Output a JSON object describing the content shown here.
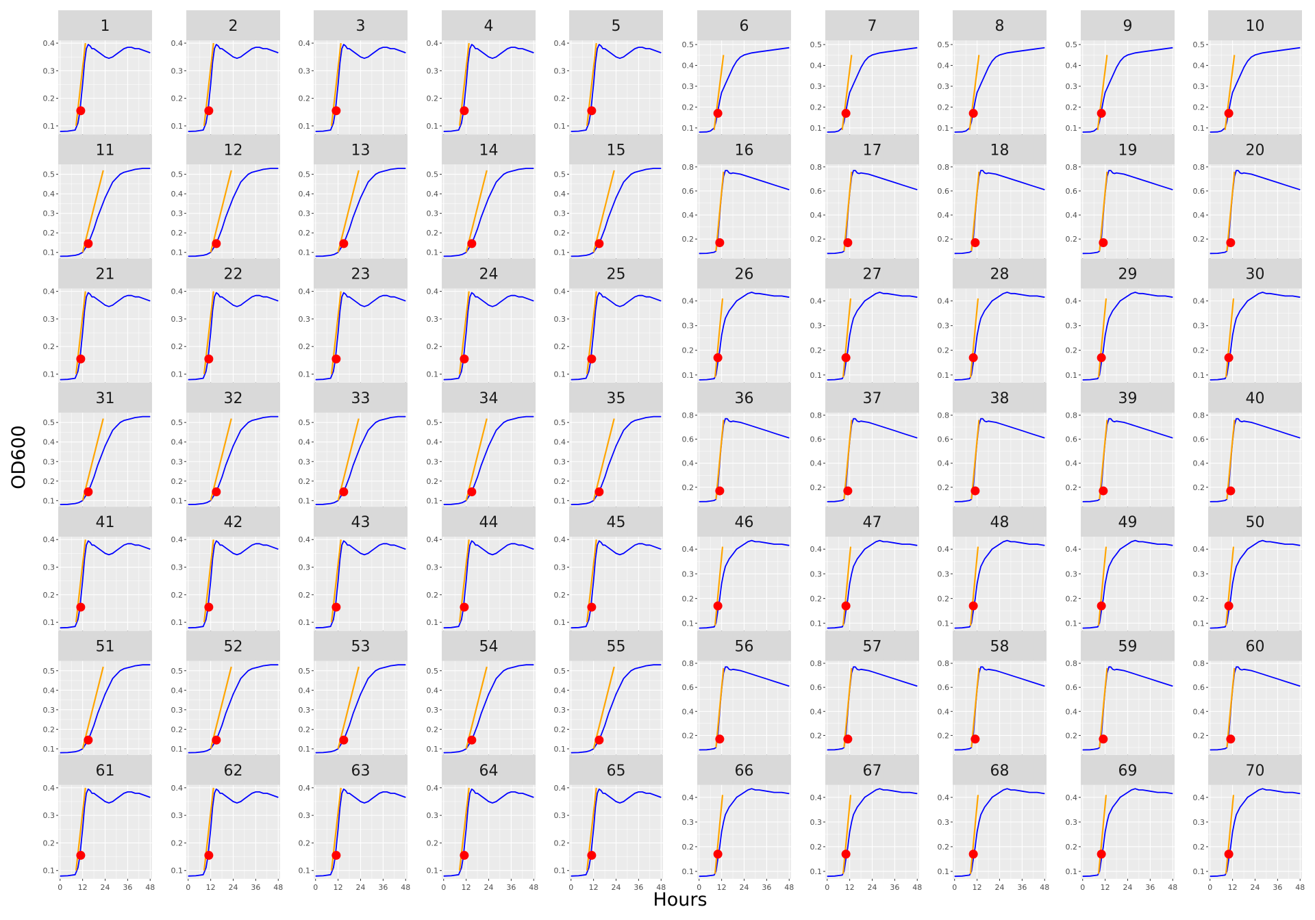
{
  "chart_data": {
    "type": "line",
    "layout": "facet-grid",
    "facet_columns": 10,
    "facet_rows": 7,
    "xlabel": "Hours",
    "ylabel": "OD600",
    "x_ticks": [
      "0",
      "12",
      "24",
      "36",
      "48"
    ],
    "xlim": [
      -1,
      49
    ],
    "series": [
      {
        "name": "",
        "role": "growth-curve",
        "color": "#0000ff"
      },
      {
        "name": "",
        "role": "exponential-fit",
        "color": "#ffa500"
      },
      {
        "name": "",
        "role": "fit-point",
        "color": "#ff0000"
      }
    ],
    "colors": {
      "panel_bg": "#ebebeb",
      "grid": "#ffffff",
      "strip_bg": "#d9d9d9",
      "text": "#1a1a1a",
      "tick": "#4d4d4d"
    },
    "block_templates": {
      "A": {
        "ylim": [
          0.07,
          0.41
        ],
        "yticks": [
          "0.1",
          "0.2",
          "0.3",
          "0.4"
        ],
        "curve": [
          [
            0,
            0.08
          ],
          [
            4,
            0.081
          ],
          [
            8,
            0.085
          ],
          [
            9.5,
            0.11
          ],
          [
            10.5,
            0.15
          ],
          [
            12,
            0.25
          ],
          [
            13,
            0.33
          ],
          [
            14,
            0.38
          ],
          [
            15,
            0.395
          ],
          [
            16,
            0.39
          ],
          [
            17,
            0.38
          ],
          [
            18,
            0.38
          ],
          [
            19,
            0.375
          ],
          [
            20,
            0.37
          ],
          [
            22,
            0.36
          ],
          [
            24,
            0.35
          ],
          [
            26,
            0.345
          ],
          [
            28,
            0.35
          ],
          [
            30,
            0.36
          ],
          [
            32,
            0.37
          ],
          [
            34,
            0.38
          ],
          [
            36,
            0.385
          ],
          [
            38,
            0.385
          ],
          [
            40,
            0.38
          ],
          [
            42,
            0.38
          ],
          [
            44,
            0.375
          ],
          [
            46,
            0.37
          ],
          [
            48,
            0.365
          ]
        ],
        "fit": [
          [
            8.5,
            0.1
          ],
          [
            13.5,
            0.4
          ]
        ],
        "point": [
          11,
          0.155
        ]
      },
      "B": {
        "ylim": [
          0.07,
          0.52
        ],
        "yticks": [
          "0.1",
          "0.2",
          "0.3",
          "0.4",
          "0.5"
        ],
        "curve": [
          [
            0,
            0.08
          ],
          [
            4,
            0.081
          ],
          [
            6,
            0.085
          ],
          [
            8,
            0.1
          ],
          [
            9,
            0.13
          ],
          [
            10,
            0.18
          ],
          [
            11,
            0.23
          ],
          [
            12,
            0.27
          ],
          [
            13,
            0.29
          ],
          [
            14,
            0.31
          ],
          [
            16,
            0.35
          ],
          [
            18,
            0.39
          ],
          [
            20,
            0.42
          ],
          [
            22,
            0.44
          ],
          [
            24,
            0.45
          ],
          [
            28,
            0.46
          ],
          [
            32,
            0.465
          ],
          [
            36,
            0.47
          ],
          [
            40,
            0.475
          ],
          [
            44,
            0.48
          ],
          [
            48,
            0.485
          ]
        ],
        "fit": [
          [
            8,
            0.09
          ],
          [
            13,
            0.45
          ]
        ],
        "point": [
          10,
          0.17
        ]
      },
      "C": {
        "ylim": [
          0.07,
          0.55
        ],
        "yticks": [
          "0.1",
          "0.2",
          "0.3",
          "0.4",
          "0.5"
        ],
        "curve": [
          [
            0,
            0.08
          ],
          [
            4,
            0.081
          ],
          [
            8,
            0.085
          ],
          [
            10,
            0.09
          ],
          [
            12,
            0.1
          ],
          [
            14,
            0.13
          ],
          [
            16,
            0.17
          ],
          [
            18,
            0.22
          ],
          [
            20,
            0.28
          ],
          [
            22,
            0.33
          ],
          [
            24,
            0.38
          ],
          [
            26,
            0.42
          ],
          [
            28,
            0.46
          ],
          [
            30,
            0.48
          ],
          [
            32,
            0.5
          ],
          [
            34,
            0.51
          ],
          [
            36,
            0.515
          ],
          [
            38,
            0.52
          ],
          [
            40,
            0.525
          ],
          [
            44,
            0.53
          ],
          [
            48,
            0.53
          ]
        ],
        "fit": [
          [
            12,
            0.1
          ],
          [
            23,
            0.52
          ]
        ],
        "point": [
          15,
          0.145
        ]
      },
      "D": {
        "ylim": [
          0.04,
          0.82
        ],
        "yticks": [
          "0.2",
          "0.4",
          "0.6",
          "0.8"
        ],
        "curve": [
          [
            0,
            0.08
          ],
          [
            4,
            0.081
          ],
          [
            6,
            0.085
          ],
          [
            8,
            0.09
          ],
          [
            9,
            0.1
          ],
          [
            10,
            0.2
          ],
          [
            11,
            0.4
          ],
          [
            12,
            0.58
          ],
          [
            13,
            0.72
          ],
          [
            14,
            0.77
          ],
          [
            15,
            0.77
          ],
          [
            16,
            0.75
          ],
          [
            17,
            0.745
          ],
          [
            18,
            0.75
          ],
          [
            20,
            0.745
          ],
          [
            22,
            0.74
          ],
          [
            24,
            0.73
          ],
          [
            28,
            0.71
          ],
          [
            32,
            0.69
          ],
          [
            36,
            0.67
          ],
          [
            40,
            0.65
          ],
          [
            44,
            0.63
          ],
          [
            48,
            0.61
          ]
        ],
        "fit": [
          [
            9,
            0.1
          ],
          [
            13,
            0.76
          ]
        ],
        "point": [
          11,
          0.17
        ]
      },
      "E": {
        "ylim": [
          0.07,
          0.45
        ],
        "yticks": [
          "0.1",
          "0.2",
          "0.3",
          "0.4"
        ],
        "curve": [
          [
            0,
            0.08
          ],
          [
            4,
            0.081
          ],
          [
            8,
            0.085
          ],
          [
            9,
            0.1
          ],
          [
            10,
            0.15
          ],
          [
            11,
            0.2
          ],
          [
            12,
            0.26
          ],
          [
            13,
            0.3
          ],
          [
            14,
            0.33
          ],
          [
            16,
            0.36
          ],
          [
            18,
            0.38
          ],
          [
            20,
            0.4
          ],
          [
            22,
            0.41
          ],
          [
            24,
            0.42
          ],
          [
            26,
            0.43
          ],
          [
            28,
            0.435
          ],
          [
            30,
            0.43
          ],
          [
            32,
            0.43
          ],
          [
            36,
            0.425
          ],
          [
            40,
            0.42
          ],
          [
            44,
            0.42
          ],
          [
            48,
            0.415
          ]
        ],
        "fit": [
          [
            8.5,
            0.09
          ],
          [
            12.5,
            0.41
          ]
        ],
        "point": [
          10,
          0.17
        ]
      }
    },
    "facets": [
      {
        "label": "1",
        "t": "A"
      },
      {
        "label": "2",
        "t": "A"
      },
      {
        "label": "3",
        "t": "A"
      },
      {
        "label": "4",
        "t": "A"
      },
      {
        "label": "5",
        "t": "A"
      },
      {
        "label": "6",
        "t": "B"
      },
      {
        "label": "7",
        "t": "B"
      },
      {
        "label": "8",
        "t": "B"
      },
      {
        "label": "9",
        "t": "B"
      },
      {
        "label": "10",
        "t": "B"
      },
      {
        "label": "11",
        "t": "C"
      },
      {
        "label": "12",
        "t": "C"
      },
      {
        "label": "13",
        "t": "C"
      },
      {
        "label": "14",
        "t": "C"
      },
      {
        "label": "15",
        "t": "C"
      },
      {
        "label": "16",
        "t": "D"
      },
      {
        "label": "17",
        "t": "D"
      },
      {
        "label": "18",
        "t": "D"
      },
      {
        "label": "19",
        "t": "D"
      },
      {
        "label": "20",
        "t": "D"
      },
      {
        "label": "21",
        "t": "A"
      },
      {
        "label": "22",
        "t": "A"
      },
      {
        "label": "23",
        "t": "A"
      },
      {
        "label": "24",
        "t": "A"
      },
      {
        "label": "25",
        "t": "A"
      },
      {
        "label": "26",
        "t": "E"
      },
      {
        "label": "27",
        "t": "E"
      },
      {
        "label": "28",
        "t": "E"
      },
      {
        "label": "29",
        "t": "E"
      },
      {
        "label": "30",
        "t": "E"
      },
      {
        "label": "31",
        "t": "C"
      },
      {
        "label": "32",
        "t": "C"
      },
      {
        "label": "33",
        "t": "C"
      },
      {
        "label": "34",
        "t": "C"
      },
      {
        "label": "35",
        "t": "C"
      },
      {
        "label": "36",
        "t": "D"
      },
      {
        "label": "37",
        "t": "D"
      },
      {
        "label": "38",
        "t": "D"
      },
      {
        "label": "39",
        "t": "D"
      },
      {
        "label": "40",
        "t": "D"
      },
      {
        "label": "41",
        "t": "A"
      },
      {
        "label": "42",
        "t": "A"
      },
      {
        "label": "43",
        "t": "A"
      },
      {
        "label": "44",
        "t": "A"
      },
      {
        "label": "45",
        "t": "A"
      },
      {
        "label": "46",
        "t": "E"
      },
      {
        "label": "47",
        "t": "E"
      },
      {
        "label": "48",
        "t": "E"
      },
      {
        "label": "49",
        "t": "E"
      },
      {
        "label": "50",
        "t": "E"
      },
      {
        "label": "51",
        "t": "C"
      },
      {
        "label": "52",
        "t": "C"
      },
      {
        "label": "53",
        "t": "C"
      },
      {
        "label": "54",
        "t": "C"
      },
      {
        "label": "55",
        "t": "C"
      },
      {
        "label": "56",
        "t": "D"
      },
      {
        "label": "57",
        "t": "D"
      },
      {
        "label": "58",
        "t": "D"
      },
      {
        "label": "59",
        "t": "D"
      },
      {
        "label": "60",
        "t": "D"
      },
      {
        "label": "61",
        "t": "A"
      },
      {
        "label": "62",
        "t": "A"
      },
      {
        "label": "63",
        "t": "A"
      },
      {
        "label": "64",
        "t": "A"
      },
      {
        "label": "65",
        "t": "A"
      },
      {
        "label": "66",
        "t": "E"
      },
      {
        "label": "67",
        "t": "E"
      },
      {
        "label": "68",
        "t": "E"
      },
      {
        "label": "69",
        "t": "E"
      },
      {
        "label": "70",
        "t": "E"
      }
    ]
  }
}
